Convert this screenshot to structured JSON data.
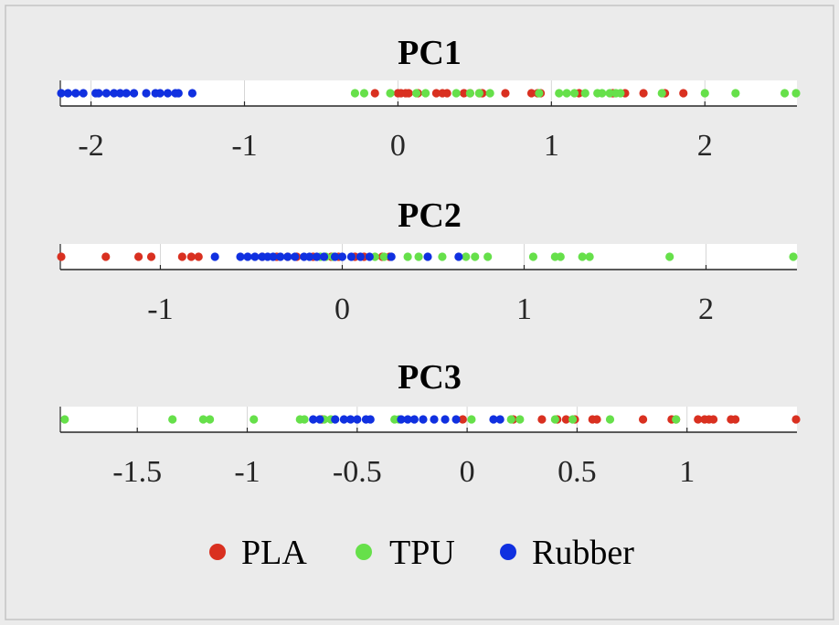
{
  "figure": {
    "background": "#ebebeb",
    "border_color": "#c4c4c4",
    "strip_color": "#ffffff"
  },
  "chart_data": [
    {
      "type": "scatter",
      "title": "PC1",
      "xlim": [
        -2.2,
        2.6
      ],
      "xticks": [
        -2,
        -1,
        0,
        1,
        2
      ],
      "tick_labels": [
        "-2",
        "-1",
        "0",
        "1",
        "2"
      ],
      "grid": true,
      "series": [
        {
          "name": "PLA",
          "values": [
            -0.15,
            0.0,
            0.02,
            0.05,
            0.07,
            0.13,
            0.25,
            0.29,
            0.32,
            0.43,
            0.47,
            0.53,
            0.55,
            0.7,
            0.87,
            0.91,
            0.93,
            1.18,
            1.4,
            1.48,
            1.6,
            1.74,
            1.86
          ]
        },
        {
          "name": "TPU",
          "values": [
            -0.28,
            -0.22,
            -0.05,
            0.12,
            0.18,
            0.38,
            0.47,
            0.53,
            0.6,
            0.92,
            1.05,
            1.1,
            1.15,
            1.22,
            1.3,
            1.33,
            1.38,
            1.42,
            1.45,
            1.72,
            2.0,
            2.2,
            2.52,
            2.6
          ]
        },
        {
          "name": "Rubber",
          "values": [
            -2.2,
            -2.15,
            -2.1,
            -2.05,
            -1.97,
            -1.95,
            -1.9,
            -1.85,
            -1.81,
            -1.77,
            -1.72,
            -1.64,
            -1.58,
            -1.55,
            -1.5,
            -1.45,
            -1.43,
            -1.34
          ]
        }
      ]
    },
    {
      "type": "scatter",
      "title": "PC2",
      "xlim": [
        -1.55,
        2.5
      ],
      "xticks": [
        -1,
        0,
        1,
        2
      ],
      "tick_labels": [
        "-1",
        "0",
        "1",
        "2"
      ],
      "grid": true,
      "series": [
        {
          "name": "PLA",
          "values": [
            -1.55,
            -1.3,
            -1.12,
            -1.05,
            -0.88,
            -0.83,
            -0.79,
            -0.44,
            -0.36,
            -0.3,
            -0.25,
            -0.16,
            -0.06,
            -0.02,
            0.07,
            0.12,
            0.22,
            0.26
          ]
        },
        {
          "name": "TPU",
          "values": [
            -0.12,
            -0.09,
            -0.05,
            0.18,
            0.23,
            0.36,
            0.42,
            0.55,
            0.68,
            0.73,
            0.8,
            1.05,
            1.17,
            1.2,
            1.32,
            1.36,
            1.8,
            2.48
          ]
        },
        {
          "name": "Rubber",
          "values": [
            -0.7,
            -0.56,
            -0.52,
            -0.48,
            -0.44,
            -0.41,
            -0.38,
            -0.34,
            -0.3,
            -0.26,
            -0.21,
            -0.18,
            -0.14,
            -0.1,
            -0.04,
            0.0,
            0.05,
            0.1,
            0.15,
            0.27,
            0.47,
            0.64
          ]
        }
      ]
    },
    {
      "type": "scatter",
      "title": "PC3",
      "xlim": [
        -1.85,
        1.5
      ],
      "xticks": [
        -1.5,
        -1,
        -0.5,
        0,
        0.5,
        1
      ],
      "tick_labels": [
        "-1.5",
        "-1",
        "-0.5",
        "0",
        "0.5",
        "1"
      ],
      "grid": true,
      "series": [
        {
          "name": "PLA",
          "values": [
            -0.66,
            -0.02,
            0.21,
            0.34,
            0.41,
            0.45,
            0.49,
            0.57,
            0.59,
            0.8,
            0.93,
            0.95,
            1.05,
            1.08,
            1.1,
            1.12,
            1.2,
            1.22,
            1.5
          ]
        },
        {
          "name": "TPU",
          "values": [
            -1.83,
            -1.34,
            -1.2,
            -1.17,
            -0.97,
            -0.76,
            -0.74,
            -0.65,
            -0.62,
            -0.33,
            -0.31,
            0.02,
            0.2,
            0.24,
            0.4,
            0.48,
            0.65,
            0.95
          ]
        },
        {
          "name": "Rubber",
          "values": [
            -0.7,
            -0.67,
            -0.6,
            -0.56,
            -0.53,
            -0.5,
            -0.46,
            -0.44,
            -0.3,
            -0.27,
            -0.24,
            -0.2,
            -0.15,
            -0.1,
            -0.05,
            0.12,
            0.15
          ]
        }
      ]
    }
  ],
  "legend": {
    "placement": "bottom",
    "items": [
      {
        "label": "PLA",
        "color": "#d93020"
      },
      {
        "label": "TPU",
        "color": "#66e04a"
      },
      {
        "label": "Rubber",
        "color": "#1030e0"
      }
    ]
  }
}
